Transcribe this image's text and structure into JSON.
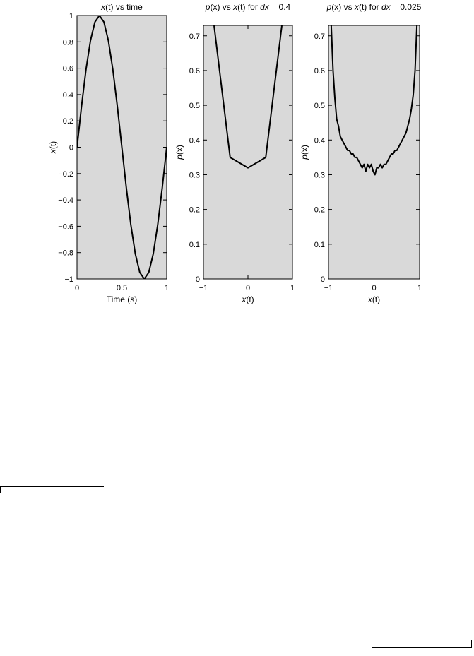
{
  "chart_data": [
    {
      "type": "line",
      "title": "x(t) vs time",
      "xlabel": "Time (s)",
      "ylabel": "x(t)",
      "xlim": [
        0,
        1
      ],
      "ylim": [
        -1,
        1
      ],
      "xticks": [
        "0",
        "0.5",
        "1"
      ],
      "xtick_values": [
        0,
        0.5,
        1
      ],
      "yticks": [
        "−1",
        "−0.8",
        "−0.6",
        "−0.4",
        "−0.2",
        "0",
        "0.2",
        "0.4",
        "0.6",
        "0.8",
        "1"
      ],
      "ytick_values": [
        -1,
        -0.8,
        -0.6,
        -0.4,
        -0.2,
        0,
        0.2,
        0.4,
        0.6,
        0.8,
        1
      ],
      "background": "#d9d9d9",
      "line_color": "#000000",
      "x": [
        0,
        0.05,
        0.1,
        0.15,
        0.2,
        0.25,
        0.3,
        0.35,
        0.4,
        0.45,
        0.5,
        0.55,
        0.6,
        0.65,
        0.7,
        0.75,
        0.8,
        0.85,
        0.9,
        0.95,
        1.0
      ],
      "y": [
        0,
        0.309,
        0.588,
        0.809,
        0.951,
        1.0,
        0.951,
        0.809,
        0.588,
        0.309,
        0,
        -0.309,
        -0.588,
        -0.809,
        -0.951,
        -1.0,
        -0.951,
        -0.809,
        -0.588,
        -0.309,
        0
      ]
    },
    {
      "type": "line",
      "title": "p(x) vs x(t) for dx = 0.4",
      "xlabel": "x(t)",
      "ylabel": "p(x)",
      "xlim": [
        -1,
        1
      ],
      "ylim": [
        0,
        0.73
      ],
      "xticks": [
        "−1",
        "0",
        "1"
      ],
      "xtick_values": [
        -1,
        0,
        1
      ],
      "yticks": [
        "0",
        "0.1",
        "0.2",
        "0.3",
        "0.4",
        "0.5",
        "0.6",
        "0.7"
      ],
      "ytick_values": [
        0,
        0.1,
        0.2,
        0.3,
        0.4,
        0.5,
        0.6,
        0.7
      ],
      "background": "#d9d9d9",
      "line_color": "#000000",
      "x": [
        -0.8,
        -0.4,
        0,
        0.4,
        0.8
      ],
      "y": [
        0.77,
        0.35,
        0.32,
        0.35,
        0.77
      ]
    },
    {
      "type": "line",
      "title": "p(x) vs x(t) for dx = 0.025",
      "xlabel": "x(t)",
      "ylabel": "p(x)",
      "xlim": [
        -1,
        1
      ],
      "ylim": [
        0,
        0.73
      ],
      "xticks": [
        "−1",
        "0",
        "1"
      ],
      "xtick_values": [
        -1,
        0,
        1
      ],
      "yticks": [
        "0",
        "0.1",
        "0.2",
        "0.3",
        "0.4",
        "0.5",
        "0.6",
        "0.7"
      ],
      "ytick_values": [
        0,
        0.1,
        0.2,
        0.3,
        0.4,
        0.5,
        0.6,
        0.7
      ],
      "background": "#d9d9d9",
      "line_color": "#000000",
      "x": [
        -0.94,
        -0.9,
        -0.86,
        -0.82,
        -0.78,
        -0.74,
        -0.7,
        -0.66,
        -0.62,
        -0.58,
        -0.54,
        -0.5,
        -0.46,
        -0.42,
        -0.38,
        -0.34,
        -0.3,
        -0.26,
        -0.22,
        -0.18,
        -0.14,
        -0.1,
        -0.06,
        -0.02,
        0.02,
        0.06,
        0.1,
        0.14,
        0.18,
        0.22,
        0.26,
        0.3,
        0.34,
        0.38,
        0.42,
        0.46,
        0.5,
        0.54,
        0.58,
        0.62,
        0.66,
        0.7,
        0.74,
        0.78,
        0.82,
        0.86,
        0.9,
        0.94
      ],
      "y": [
        0.73,
        0.6,
        0.52,
        0.46,
        0.44,
        0.41,
        0.4,
        0.39,
        0.38,
        0.37,
        0.37,
        0.36,
        0.36,
        0.35,
        0.35,
        0.34,
        0.33,
        0.32,
        0.33,
        0.31,
        0.33,
        0.32,
        0.33,
        0.31,
        0.3,
        0.32,
        0.32,
        0.33,
        0.32,
        0.33,
        0.33,
        0.34,
        0.35,
        0.36,
        0.36,
        0.37,
        0.37,
        0.38,
        0.39,
        0.4,
        0.41,
        0.42,
        0.44,
        0.46,
        0.49,
        0.53,
        0.6,
        0.73
      ]
    }
  ]
}
